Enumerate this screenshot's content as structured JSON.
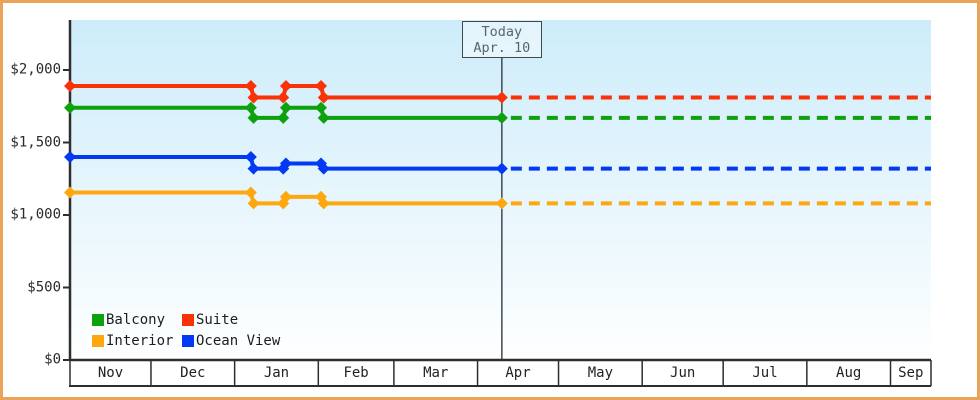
{
  "chart_data": {
    "type": "line",
    "description": "Cruise cabin price history and forecast by cabin category, Nov 1 through Sep 15, prices in USD",
    "x_axis": {
      "total_days": 319,
      "months": [
        {
          "label": "Nov",
          "days": 30
        },
        {
          "label": "Dec",
          "days": 31
        },
        {
          "label": "Jan",
          "days": 31
        },
        {
          "label": "Feb",
          "days": 28
        },
        {
          "label": "Mar",
          "days": 31
        },
        {
          "label": "Apr",
          "days": 30
        },
        {
          "label": "May",
          "days": 31
        },
        {
          "label": "Jun",
          "days": 30
        },
        {
          "label": "Jul",
          "days": 31
        },
        {
          "label": "Aug",
          "days": 31
        },
        {
          "label": "Sep",
          "days": 15
        }
      ]
    },
    "y_axis": {
      "range": [
        0,
        2345
      ],
      "ticks": [
        {
          "value": 0,
          "label": "$0"
        },
        {
          "value": 500,
          "label": "$500"
        },
        {
          "value": 1000,
          "label": "$1,000"
        },
        {
          "value": 1500,
          "label": "$1,500"
        },
        {
          "value": 2000,
          "label": "$2,000"
        }
      ]
    },
    "today": {
      "label_line1": "Today",
      "label_line2": "Apr. 10",
      "date": "Apr 10",
      "day": 160
    },
    "series": [
      {
        "name": "Suite",
        "color": "#f93208",
        "points": [
          {
            "date": "Nov 1",
            "day": 0,
            "price": 1890
          },
          {
            "date": "Jan 7",
            "day": 67,
            "price": 1890
          },
          {
            "date": "Jan 8",
            "day": 68,
            "price": 1810
          },
          {
            "date": "Jan 19",
            "day": 79,
            "price": 1810
          },
          {
            "date": "Jan 20",
            "day": 80,
            "price": 1890
          },
          {
            "date": "Feb 2",
            "day": 93,
            "price": 1890
          },
          {
            "date": "Feb 3",
            "day": 94,
            "price": 1810
          },
          {
            "date": "Apr 10",
            "day": 160,
            "price": 1810
          }
        ],
        "forecast": {
          "from_day": 160,
          "to_day": 319,
          "price": 1810
        }
      },
      {
        "name": "Balcony",
        "color": "#0ea10e",
        "points": [
          {
            "date": "Nov 1",
            "day": 0,
            "price": 1740
          },
          {
            "date": "Jan 7",
            "day": 67,
            "price": 1740
          },
          {
            "date": "Jan 8",
            "day": 68,
            "price": 1670
          },
          {
            "date": "Jan 19",
            "day": 79,
            "price": 1670
          },
          {
            "date": "Jan 20",
            "day": 80,
            "price": 1740
          },
          {
            "date": "Feb 2",
            "day": 93,
            "price": 1740
          },
          {
            "date": "Feb 3",
            "day": 94,
            "price": 1670
          },
          {
            "date": "Apr 10",
            "day": 160,
            "price": 1670
          }
        ],
        "forecast": {
          "from_day": 160,
          "to_day": 319,
          "price": 1670
        }
      },
      {
        "name": "Ocean View",
        "color": "#0339f5",
        "points": [
          {
            "date": "Nov 1",
            "day": 0,
            "price": 1400
          },
          {
            "date": "Jan 7",
            "day": 67,
            "price": 1400
          },
          {
            "date": "Jan 8",
            "day": 68,
            "price": 1320
          },
          {
            "date": "Jan 19",
            "day": 79,
            "price": 1320
          },
          {
            "date": "Jan 20",
            "day": 80,
            "price": 1355
          },
          {
            "date": "Feb 2",
            "day": 93,
            "price": 1355
          },
          {
            "date": "Feb 3",
            "day": 94,
            "price": 1320
          },
          {
            "date": "Apr 10",
            "day": 160,
            "price": 1320
          }
        ],
        "forecast": {
          "from_day": 160,
          "to_day": 319,
          "price": 1320
        }
      },
      {
        "name": "Interior",
        "color": "#ffa70e",
        "points": [
          {
            "date": "Nov 1",
            "day": 0,
            "price": 1155
          },
          {
            "date": "Jan 7",
            "day": 67,
            "price": 1155
          },
          {
            "date": "Jan 8",
            "day": 68,
            "price": 1080
          },
          {
            "date": "Jan 19",
            "day": 79,
            "price": 1080
          },
          {
            "date": "Jan 20",
            "day": 80,
            "price": 1125
          },
          {
            "date": "Feb 2",
            "day": 93,
            "price": 1125
          },
          {
            "date": "Feb 3",
            "day": 94,
            "price": 1080
          },
          {
            "date": "Apr 10",
            "day": 160,
            "price": 1080
          }
        ],
        "forecast": {
          "from_day": 160,
          "to_day": 319,
          "price": 1080
        }
      }
    ],
    "legend": {
      "items": [
        "Balcony",
        "Suite",
        "Interior",
        "Ocean View"
      ]
    },
    "colors": {
      "plot_bg_top": "#cdecfa",
      "plot_bg_bottom": "#feffff",
      "frame_border": "#e9a45a",
      "axis": "#2e2e2e",
      "label_text": "#2b2b2b",
      "today_line": "#3f4a4f",
      "today_text": "#5a666d"
    }
  }
}
